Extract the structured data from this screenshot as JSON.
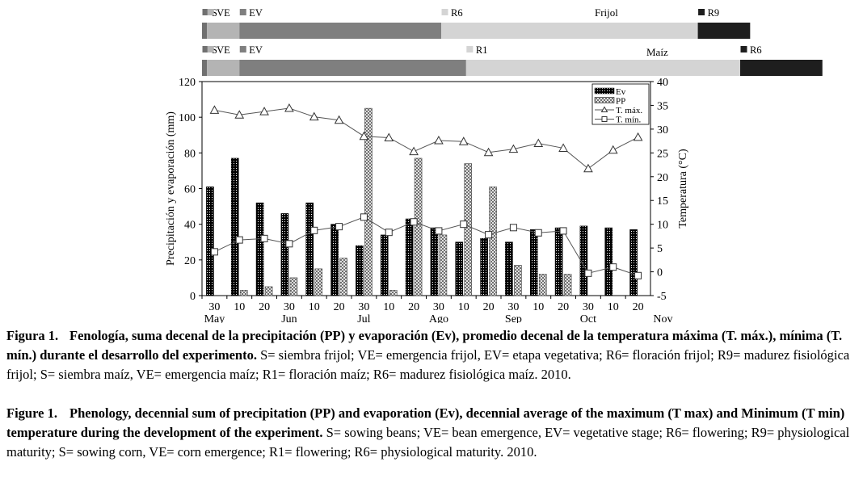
{
  "phenology": {
    "beans": {
      "name": "Frijol",
      "stages": [
        {
          "label": "S",
          "start": 0,
          "end": 0.2,
          "color": "#707070"
        },
        {
          "label": "VE",
          "start": 0.2,
          "end": 1.5,
          "color": "#b4b4b4"
        },
        {
          "label": "EV",
          "start": 1.5,
          "end": 9.6,
          "color": "#7f7f7f"
        },
        {
          "label": "R6",
          "start": 9.6,
          "end": 19.9,
          "color": "#d4d4d4"
        },
        {
          "label": "R9",
          "start": 19.9,
          "end": 22.0,
          "color": "#1e1e1e"
        }
      ]
    },
    "corn": {
      "name": "Maíz",
      "stages": [
        {
          "label": "S",
          "start": 0,
          "end": 0.2,
          "color": "#707070"
        },
        {
          "label": "VE",
          "start": 0.2,
          "end": 1.5,
          "color": "#b4b4b4"
        },
        {
          "label": "EV",
          "start": 1.5,
          "end": 10.6,
          "color": "#7f7f7f"
        },
        {
          "label": "R1",
          "start": 10.6,
          "end": 21.6,
          "color": "#d4d4d4"
        },
        {
          "label": "R6",
          "start": 21.6,
          "end": 24.9,
          "color": "#1e1e1e"
        }
      ]
    }
  },
  "chart_data": {
    "type": "bar",
    "categories": [
      "30",
      "10",
      "20",
      "30",
      "10",
      "20",
      "30",
      "10",
      "20",
      "30",
      "10",
      "20",
      "30",
      "10",
      "20",
      "30",
      "10",
      "20"
    ],
    "months": [
      "May",
      "Jun",
      "Jul",
      "Ago",
      "Sep",
      "Oct",
      "Nov"
    ],
    "ylabel": "Precipitación y evaporación (mm)",
    "y2label": "Temperatura (°C)",
    "ylim": [
      0,
      120
    ],
    "y2lim": [
      -5,
      40
    ],
    "yticks": [
      0,
      20,
      40,
      60,
      80,
      100,
      120
    ],
    "y2ticks": [
      -5,
      0,
      5,
      10,
      15,
      20,
      25,
      30,
      35,
      40
    ],
    "series": [
      {
        "name": "Ev",
        "type": "bar",
        "values": [
          61,
          77,
          52,
          46,
          52,
          40,
          28,
          34,
          43,
          38,
          30,
          32,
          30,
          37,
          38,
          39,
          38,
          37
        ]
      },
      {
        "name": "PP",
        "type": "bar",
        "values": [
          0,
          3,
          5,
          10,
          15,
          21,
          105,
          3,
          77,
          34,
          74,
          61,
          17,
          12,
          12,
          0,
          0,
          0
        ]
      },
      {
        "name": "T. máx.",
        "type": "line",
        "axis": "right",
        "values": [
          34,
          33,
          33.7,
          34.4,
          32.6,
          31.9,
          28.5,
          28.2,
          25.3,
          27.6,
          27.4,
          25.1,
          25.8,
          27.0,
          26.0,
          21.7,
          25.6,
          28.3
        ]
      },
      {
        "name": "T. mín.",
        "type": "line",
        "axis": "right",
        "values": [
          4.2,
          6.7,
          7,
          5.9,
          8.7,
          9.5,
          11.5,
          8.3,
          10.5,
          8.6,
          10,
          7.8,
          9.3,
          8.2,
          8.6,
          -0.3,
          1,
          -0.8
        ]
      }
    ]
  },
  "caption_es": {
    "label": "Figura 1.",
    "bold": "Fenología, suma decenal de la precipitación (PP) y evaporación (Ev), promedio decenal de la temperatura máxima (T. máx.), mínima (T. mín.) durante el desarrollo del experimento.",
    "rest": "S= siembra frijol; VE= emergencia frijol, EV= etapa vegetativa; R6= floración frijol; R9= madurez fisiológica frijol; S= siembra maíz, VE= emergencia maíz; R1= floración maíz; R6= madurez fisiológica maíz. 2010."
  },
  "caption_en": {
    "label": "Figure 1.",
    "bold": "Phenology, decennial sum of precipitation (PP) and evaporation (Ev), decennial average of the maximum (T max) and Minimum (T min) temperature during the development of the experiment.",
    "rest": "S= sowing beans; VE= bean emergence, EV= vegetative stage; R6= flowering; R9= physiological maturity; S= sowing corn, VE= corn emergence; R1= flowering; R6= physiological maturity. 2010."
  }
}
